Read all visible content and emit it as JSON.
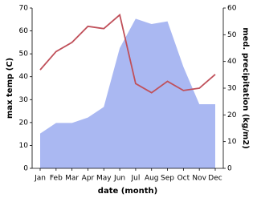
{
  "chart_data": {
    "type": "line",
    "x_label": "date (month)",
    "y_label": "max temp (C)",
    "y2_label": "med. precipitation (kg/m2)",
    "categories": [
      "Jan",
      "Feb",
      "Mar",
      "Apr",
      "May",
      "Jun",
      "Jul",
      "Aug",
      "Sep",
      "Oct",
      "Nov",
      "Dec"
    ],
    "series": [
      {
        "name": "max temp",
        "color": "#c0505a",
        "values": [
          43,
          51,
          55,
          62,
          61,
          67,
          37,
          33,
          38,
          34,
          35,
          41
        ]
      },
      {
        "name": "precipitation",
        "color": "#aab8f2",
        "axis": "y2",
        "area": true,
        "values": [
          13,
          17,
          17,
          19,
          23,
          45,
          56,
          54,
          55,
          38,
          24,
          24
        ]
      }
    ],
    "ylim": [
      0,
      70
    ],
    "yticks": [
      0,
      10,
      20,
      30,
      40,
      50,
      60,
      70
    ],
    "y2lim": [
      0,
      60
    ],
    "y2ticks": [
      0,
      10,
      20,
      30,
      40,
      50,
      60
    ]
  }
}
